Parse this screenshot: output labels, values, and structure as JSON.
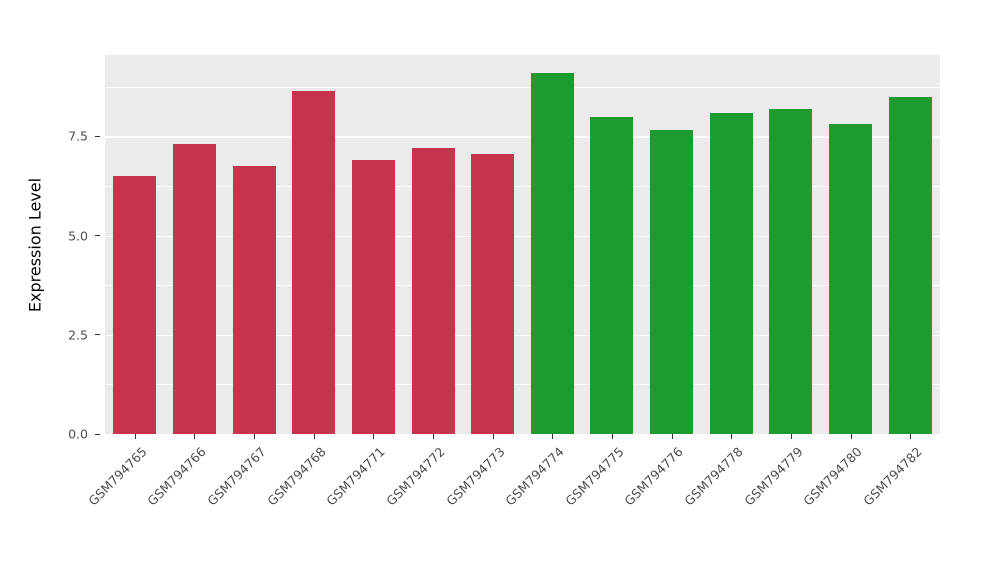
{
  "chart_data": {
    "type": "bar",
    "title": "",
    "xlabel": "",
    "ylabel": "Expression Level",
    "categories": [
      "GSM794765",
      "GSM794766",
      "GSM794767",
      "GSM794768",
      "GSM794771",
      "GSM794772",
      "GSM794773",
      "GSM794774",
      "GSM794775",
      "GSM794776",
      "GSM794778",
      "GSM794779",
      "GSM794780",
      "GSM794782"
    ],
    "values": [
      6.5,
      7.3,
      6.75,
      8.65,
      6.9,
      7.2,
      7.05,
      9.1,
      8.0,
      7.65,
      8.1,
      8.2,
      7.8,
      8.5
    ],
    "groups": [
      "red",
      "red",
      "red",
      "red",
      "red",
      "red",
      "red",
      "green",
      "green",
      "green",
      "green",
      "green",
      "green",
      "green"
    ],
    "group_colors": {
      "red": "#C5344C",
      "green": "#1F9A2E"
    },
    "ylim": [
      0,
      9.55
    ],
    "y_ticks": [
      0.0,
      2.5,
      5.0,
      7.5
    ],
    "y_tick_labels": [
      "0.0",
      "2.5",
      "5.0",
      "7.5"
    ],
    "y_minor_ticks": [
      1.25,
      3.75,
      6.25,
      8.75
    ],
    "grid": true,
    "legend_position": "none",
    "panel_background": "#EBEBEB",
    "grid_color": "#FFFFFF",
    "bar_width_fraction": 0.72
  }
}
